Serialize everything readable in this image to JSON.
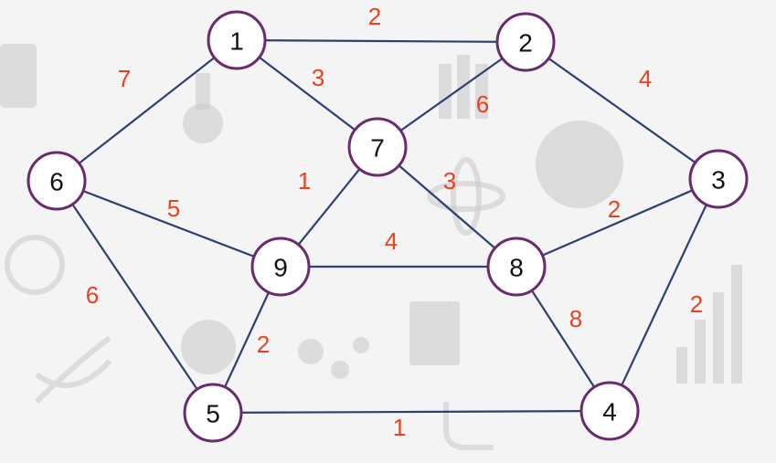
{
  "colors": {
    "background": "#f4f4f4",
    "edge": "#2f3f73",
    "node_border": "#6a2a6e",
    "node_fill": "#ffffff",
    "weight": "#e8431c"
  },
  "nodes": [
    {
      "id": "1",
      "label": "1"
    },
    {
      "id": "2",
      "label": "2"
    },
    {
      "id": "3",
      "label": "3"
    },
    {
      "id": "4",
      "label": "4"
    },
    {
      "id": "5",
      "label": "5"
    },
    {
      "id": "6",
      "label": "6"
    },
    {
      "id": "7",
      "label": "7"
    },
    {
      "id": "8",
      "label": "8"
    },
    {
      "id": "9",
      "label": "9"
    }
  ],
  "edges": [
    {
      "from": "1",
      "to": "2",
      "weight": "2"
    },
    {
      "from": "1",
      "to": "6",
      "weight": "7"
    },
    {
      "from": "1",
      "to": "7",
      "weight": "3"
    },
    {
      "from": "2",
      "to": "7",
      "weight": "6"
    },
    {
      "from": "2",
      "to": "3",
      "weight": "4"
    },
    {
      "from": "6",
      "to": "9",
      "weight": "5"
    },
    {
      "from": "6",
      "to": "5",
      "weight": "6"
    },
    {
      "from": "7",
      "to": "9",
      "weight": "1"
    },
    {
      "from": "7",
      "to": "8",
      "weight": "3"
    },
    {
      "from": "9",
      "to": "8",
      "weight": "4"
    },
    {
      "from": "8",
      "to": "3",
      "weight": "2"
    },
    {
      "from": "3",
      "to": "4",
      "weight": "2"
    },
    {
      "from": "9",
      "to": "5",
      "weight": "2"
    },
    {
      "from": "8",
      "to": "4",
      "weight": "8"
    },
    {
      "from": "5",
      "to": "4",
      "weight": "1"
    }
  ],
  "background_icons": [
    "calculator-icon",
    "flask-icon",
    "compass-icon",
    "dna-icon",
    "pie-chart-icon",
    "bar-chart-icon",
    "apple-icon",
    "molecule-icon",
    "book-icon",
    "magnet-icon",
    "atom-icon",
    "people-icon"
  ]
}
